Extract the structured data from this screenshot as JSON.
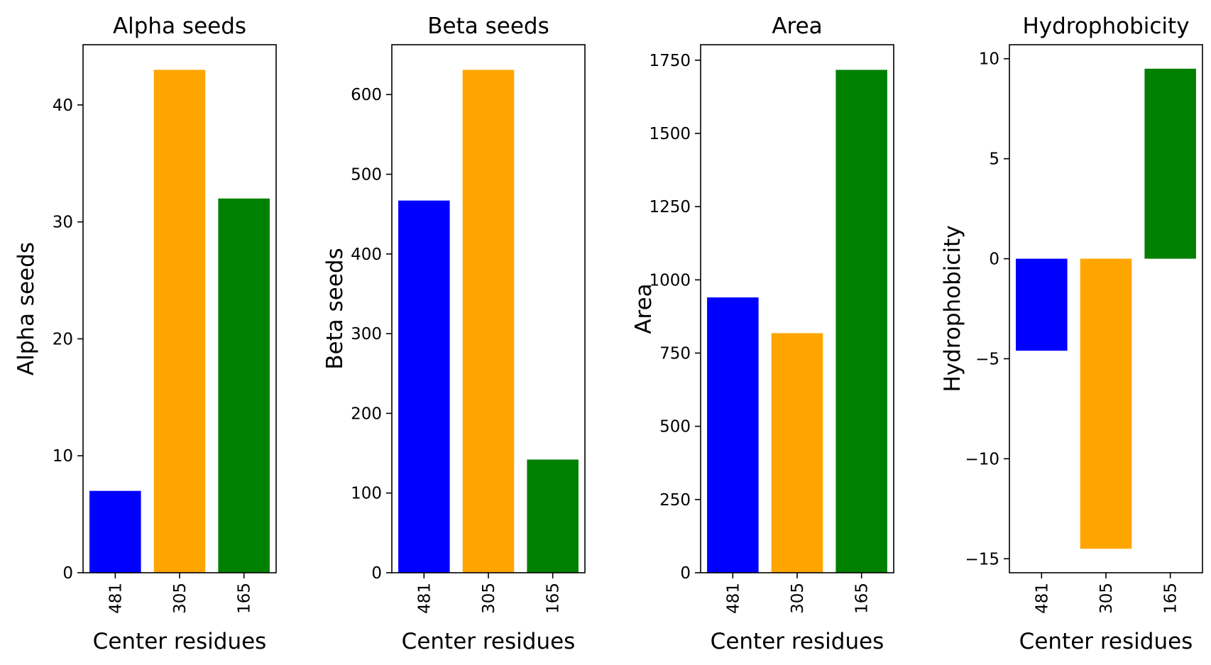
{
  "chart_data": [
    {
      "type": "bar",
      "title": "Alpha seeds",
      "xlabel": "Center residues",
      "ylabel": "Alpha seeds",
      "categories": [
        "481",
        "305",
        "165"
      ],
      "values": [
        7,
        43,
        32
      ],
      "colors": [
        "#0000ff",
        "#ffa500",
        "#008000"
      ],
      "ylim": [
        0,
        45.15
      ],
      "yticks": [
        0,
        10,
        20,
        30,
        40
      ],
      "ytick_labels": [
        "0",
        "10",
        "20",
        "30",
        "40"
      ],
      "grid": false,
      "legend": "none"
    },
    {
      "type": "bar",
      "title": "Beta seeds",
      "xlabel": "Center residues",
      "ylabel": "Beta seeds",
      "categories": [
        "481",
        "305",
        "165"
      ],
      "values": [
        467,
        631,
        142
      ],
      "colors": [
        "#0000ff",
        "#ffa500",
        "#008000"
      ],
      "ylim": [
        0,
        662.55
      ],
      "yticks": [
        0,
        100,
        200,
        300,
        400,
        500,
        600
      ],
      "ytick_labels": [
        "0",
        "100",
        "200",
        "300",
        "400",
        "500",
        "600"
      ],
      "grid": false,
      "legend": "none"
    },
    {
      "type": "bar",
      "title": "Area",
      "xlabel": "Center residues",
      "ylabel": "Area",
      "categories": [
        "481",
        "305",
        "165"
      ],
      "values": [
        940,
        818,
        1717
      ],
      "colors": [
        "#0000ff",
        "#ffa500",
        "#008000"
      ],
      "ylim": [
        0,
        1802.85
      ],
      "yticks": [
        0,
        250,
        500,
        750,
        1000,
        1250,
        1500,
        1750
      ],
      "ytick_labels": [
        "0",
        "250",
        "500",
        "750",
        "1000",
        "1250",
        "1500",
        "1750"
      ],
      "grid": false,
      "legend": "none"
    },
    {
      "type": "bar",
      "title": "Hydrophobicity",
      "xlabel": "Center residues",
      "ylabel": "Hydrophobicity",
      "categories": [
        "481",
        "305",
        "165"
      ],
      "values": [
        -4.6,
        -14.5,
        9.5
      ],
      "colors": [
        "#0000ff",
        "#ffa500",
        "#008000"
      ],
      "ylim": [
        -15.7,
        10.7
      ],
      "yticks": [
        -15,
        -10,
        -5,
        0,
        5,
        10
      ],
      "ytick_labels": [
        "−15",
        "−10",
        "−5",
        "0",
        "5",
        "10"
      ],
      "grid": false,
      "legend": "none"
    }
  ]
}
